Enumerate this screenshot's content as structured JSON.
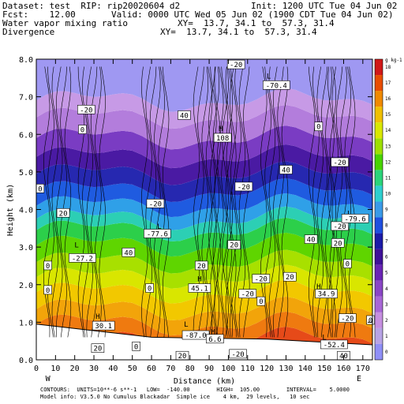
{
  "header": {
    "dataset": "Dataset: test  RIP: rip20020604 d2",
    "init": "Init: 1200 UTC Tue 04 Jun 02",
    "fcst": "Fcst:    12.00",
    "valid": "Valid: 0000 UTC Wed 05 Jun 02 (1900 CDT Tue 04 Jun 02)",
    "field1": "Water vapor mixing ratio",
    "xy1": "XY=  13.7, 34.1 to  57.3, 31.4",
    "field2": "Divergence",
    "xy2": "XY=  13.7, 34.1 to  57.3, 31.4"
  },
  "footer": {
    "line1": "CONTOURS:  UNITS=10**-6 s**-1   LOW=  -140.00        HIGH=  105.00        INTERVAL=    5.0000",
    "line2": "Model info: V3.5.0 No Cumulus Blackadar  Simple ice    4 km,  29 levels,   10 sec"
  },
  "chart_data": {
    "type": "heatmap",
    "title": "Water vapor mixing ratio / Divergence cross section",
    "xlabel": "Distance (km)",
    "ylabel": "Height (km)",
    "xlim": [
      0,
      175
    ],
    "ylim": [
      0,
      8
    ],
    "xticks": [
      "0",
      "10",
      "20",
      "30",
      "40",
      "50",
      "60",
      "70",
      "80",
      "90",
      "100",
      "110",
      "120",
      "130",
      "140",
      "150",
      "160",
      "170"
    ],
    "yticks": [
      "0.0",
      "1.0",
      "2.0",
      "3.0",
      "4.0",
      "5.0",
      "6.0",
      "7.0",
      "8.0"
    ],
    "endpoints": {
      "left": "W",
      "right": "E"
    },
    "colorbar": {
      "unit": "g kg-1",
      "levels": [
        "0",
        "1",
        "2",
        "3",
        "4",
        "5",
        "6",
        "7",
        "8",
        "9",
        "10",
        "11",
        "12",
        "13",
        "14",
        "15",
        "16",
        "17",
        "18"
      ],
      "colors": [
        "#8f8ff7",
        "#b8a3e6",
        "#c68fe0",
        "#a867d6",
        "#8a46c6",
        "#6a24b5",
        "#3f1199",
        "#1c1ba8",
        "#1f4fe0",
        "#3a9ae8",
        "#2ecfcf",
        "#2bd47a",
        "#48d400",
        "#9ee000",
        "#d9e800",
        "#f0c000",
        "#f08a00",
        "#e84d00",
        "#d01818"
      ]
    },
    "contour_labels": [
      {
        "text": "-20",
        "x": 26,
        "y": 6.65
      },
      {
        "text": "-20",
        "x": 104,
        "y": 7.85
      },
      {
        "text": "L",
        "x": 121,
        "y": 7.55
      },
      {
        "text": "-70.4",
        "x": 125,
        "y": 7.3
      },
      {
        "text": "0",
        "x": 24,
        "y": 6.12
      },
      {
        "text": "40",
        "x": 77,
        "y": 6.5
      },
      {
        "text": "H",
        "x": 96,
        "y": 6.15
      },
      {
        "text": "108",
        "x": 97,
        "y": 5.9
      },
      {
        "text": "0",
        "x": 147,
        "y": 6.2
      },
      {
        "text": "40",
        "x": 130,
        "y": 5.05
      },
      {
        "text": "-20",
        "x": 158,
        "y": 5.25
      },
      {
        "text": "-20",
        "x": 108,
        "y": 4.6
      },
      {
        "text": "0",
        "x": 2,
        "y": 4.55
      },
      {
        "text": "20",
        "x": 14,
        "y": 3.9
      },
      {
        "text": "-20",
        "x": 62,
        "y": 4.15
      },
      {
        "text": "L",
        "x": 64,
        "y": 3.55
      },
      {
        "text": "-77.6",
        "x": 63,
        "y": 3.35
      },
      {
        "text": "L",
        "x": 21,
        "y": 3.05
      },
      {
        "text": "-27.2",
        "x": 24,
        "y": 2.7
      },
      {
        "text": "40",
        "x": 48,
        "y": 2.85
      },
      {
        "text": "20",
        "x": 103,
        "y": 3.05
      },
      {
        "text": "0",
        "x": 6,
        "y": 2.5
      },
      {
        "text": "0",
        "x": 6,
        "y": 1.85
      },
      {
        "text": "20",
        "x": 86,
        "y": 2.5
      },
      {
        "text": "H",
        "x": 85,
        "y": 2.15
      },
      {
        "text": "45.1",
        "x": 85,
        "y": 1.9
      },
      {
        "text": "0",
        "x": 59,
        "y": 1.9
      },
      {
        "text": "-20",
        "x": 117,
        "y": 2.15
      },
      {
        "text": "-20",
        "x": 110,
        "y": 1.75
      },
      {
        "text": "20",
        "x": 132,
        "y": 2.2
      },
      {
        "text": "0",
        "x": 117,
        "y": 1.55
      },
      {
        "text": "H",
        "x": 147,
        "y": 1.95
      },
      {
        "text": "34.9",
        "x": 151,
        "y": 1.75
      },
      {
        "text": "0",
        "x": 162,
        "y": 2.55
      },
      {
        "text": "-20",
        "x": 162,
        "y": 1.1
      },
      {
        "text": "0",
        "x": 174,
        "y": 1.05
      },
      {
        "text": "H",
        "x": 32,
        "y": 1.15
      },
      {
        "text": "30.1",
        "x": 35,
        "y": 0.9
      },
      {
        "text": "L",
        "x": 78,
        "y": 0.95
      },
      {
        "text": "-87.0",
        "x": 83,
        "y": 0.65
      },
      {
        "text": "H",
        "x": 92,
        "y": 0.75
      },
      {
        "text": "6.6",
        "x": 93,
        "y": 0.55
      },
      {
        "text": "L",
        "x": 150,
        "y": 0.6
      },
      {
        "text": "-52.4",
        "x": 155,
        "y": 0.4
      },
      {
        "text": "20",
        "x": 32,
        "y": 0.3
      },
      {
        "text": "0",
        "x": 52,
        "y": 0.35
      },
      {
        "text": "20",
        "x": 76,
        "y": 0.1
      },
      {
        "text": "-20",
        "x": 105,
        "y": 0.15
      },
      {
        "text": "40",
        "x": 160,
        "y": 0.1
      },
      {
        "text": "-20",
        "x": 158,
        "y": 3.55
      },
      {
        "text": "L",
        "x": 163,
        "y": 3.9
      },
      {
        "text": "-79.6",
        "x": 166,
        "y": 3.75
      },
      {
        "text": "20",
        "x": 157,
        "y": 3.1
      },
      {
        "text": "40",
        "x": 143,
        "y": 3.2
      }
    ]
  }
}
